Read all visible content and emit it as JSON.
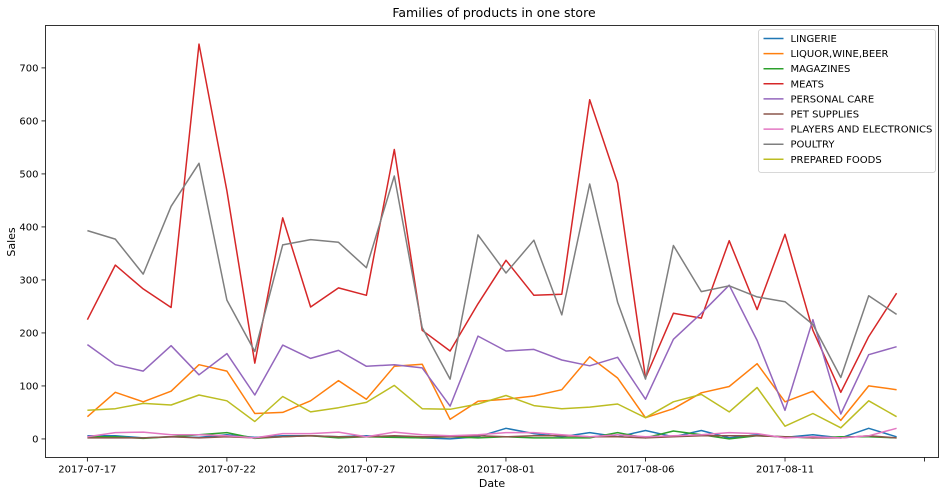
{
  "chart_data": {
    "type": "line",
    "title": "Families of products in one store",
    "xlabel": "Date",
    "ylabel": "Sales",
    "x_start": "2017-07-17",
    "x": [
      "2017-07-17",
      "2017-07-18",
      "2017-07-19",
      "2017-07-20",
      "2017-07-21",
      "2017-07-22",
      "2017-07-23",
      "2017-07-24",
      "2017-07-25",
      "2017-07-26",
      "2017-07-27",
      "2017-07-28",
      "2017-07-29",
      "2017-07-30",
      "2017-07-31",
      "2017-08-01",
      "2017-08-02",
      "2017-08-03",
      "2017-08-04",
      "2017-08-05",
      "2017-08-06",
      "2017-08-07",
      "2017-08-08",
      "2017-08-09",
      "2017-08-10",
      "2017-08-11",
      "2017-08-12",
      "2017-08-13",
      "2017-08-14",
      "2017-08-15"
    ],
    "xlim": [
      "2017-07-15T12:00",
      "2017-08-16T12:00"
    ],
    "ylim": [
      -35,
      780
    ],
    "xticks": [
      "2017-07-17",
      "2017-07-22",
      "2017-07-27",
      "2017-08-01",
      "2017-08-06",
      "2017-08-11"
    ],
    "yticks": [
      0,
      100,
      200,
      300,
      400,
      500,
      600,
      700
    ],
    "grid": false,
    "legend_position": "top-right",
    "series": [
      {
        "name": "LINGERIE",
        "color": "#1f77b4",
        "values": [
          6,
          6,
          2,
          4,
          3,
          8,
          3,
          6,
          6,
          4,
          6,
          4,
          2,
          0,
          4,
          20,
          10,
          4,
          12,
          4,
          16,
          4,
          16,
          2,
          8,
          3,
          8,
          2,
          20,
          4
        ]
      },
      {
        "name": "LIQUOR,WINE,BEER",
        "color": "#ff7f0e",
        "values": [
          42,
          88,
          70,
          90,
          140,
          128,
          48,
          50,
          72,
          110,
          75,
          137,
          141,
          37,
          71,
          75,
          81,
          93,
          155,
          115,
          40,
          57,
          87,
          99,
          142,
          70,
          90,
          35,
          100,
          93
        ]
      },
      {
        "name": "MAGAZINES",
        "color": "#2ca02c",
        "values": [
          4,
          4,
          1,
          4,
          8,
          12,
          1,
          4,
          6,
          2,
          4,
          3,
          2,
          4,
          2,
          4,
          2,
          2,
          2,
          12,
          2,
          15,
          8,
          0,
          6,
          4,
          2,
          4,
          4,
          2
        ]
      },
      {
        "name": "MEATS",
        "color": "#d62728",
        "values": [
          225,
          328,
          283,
          248,
          745,
          468,
          143,
          417,
          249,
          285,
          271,
          546,
          205,
          166,
          255,
          337,
          271,
          273,
          640,
          483,
          115,
          237,
          228,
          374,
          244,
          386,
          205,
          88,
          193,
          275
        ]
      },
      {
        "name": "PERSONAL CARE",
        "color": "#9467bd",
        "values": [
          178,
          140,
          128,
          176,
          121,
          161,
          83,
          177,
          152,
          167,
          137,
          140,
          134,
          62,
          194,
          166,
          169,
          149,
          138,
          154,
          75,
          188,
          237,
          290,
          186,
          54,
          225,
          47,
          159,
          174
        ]
      },
      {
        "name": "PET SUPPLIES",
        "color": "#8c564b",
        "values": [
          2,
          2,
          2,
          4,
          2,
          4,
          2,
          4,
          6,
          4,
          4,
          6,
          4,
          4,
          6,
          4,
          6,
          6,
          4,
          4,
          2,
          4,
          6,
          6,
          6,
          4,
          2,
          2,
          6,
          2
        ]
      },
      {
        "name": "PLAYERS AND ELECTRONICS",
        "color": "#e377c2",
        "values": [
          4,
          12,
          13,
          8,
          8,
          6,
          2,
          10,
          10,
          13,
          4,
          13,
          8,
          6,
          8,
          12,
          12,
          8,
          4,
          8,
          4,
          6,
          8,
          12,
          10,
          2,
          4,
          2,
          6,
          20
        ]
      },
      {
        "name": "POULTRY",
        "color": "#7f7f7f",
        "values": [
          393,
          377,
          311,
          439,
          520,
          262,
          165,
          366,
          376,
          371,
          323,
          496,
          210,
          113,
          385,
          313,
          375,
          234,
          481,
          258,
          113,
          365,
          278,
          289,
          268,
          259,
          216,
          116,
          270,
          235
        ]
      },
      {
        "name": "PREPARED FOODS",
        "color": "#bcbd22",
        "values": [
          54,
          57,
          67,
          64,
          83,
          72,
          33,
          80,
          51,
          59,
          69,
          101,
          57,
          56,
          66,
          82,
          63,
          57,
          60,
          66,
          40,
          70,
          84,
          51,
          97,
          24,
          48,
          21,
          72,
          42
        ]
      }
    ]
  }
}
